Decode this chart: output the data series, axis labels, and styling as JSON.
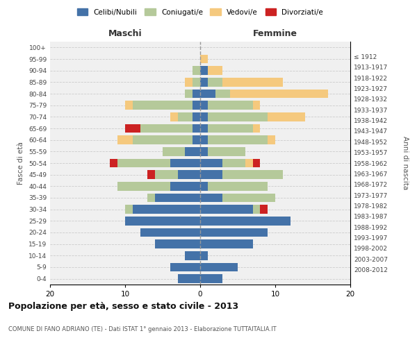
{
  "age_groups": [
    "0-4",
    "5-9",
    "10-14",
    "15-19",
    "20-24",
    "25-29",
    "30-34",
    "35-39",
    "40-44",
    "45-49",
    "50-54",
    "55-59",
    "60-64",
    "65-69",
    "70-74",
    "75-79",
    "80-84",
    "85-89",
    "90-94",
    "95-99",
    "100+"
  ],
  "birth_years": [
    "2008-2012",
    "2003-2007",
    "1998-2002",
    "1993-1997",
    "1988-1992",
    "1983-1987",
    "1978-1982",
    "1973-1977",
    "1968-1972",
    "1963-1967",
    "1958-1962",
    "1953-1957",
    "1948-1952",
    "1943-1947",
    "1938-1942",
    "1933-1937",
    "1928-1932",
    "1923-1927",
    "1918-1922",
    "1913-1917",
    "≤ 1912"
  ],
  "colors": {
    "celibi": "#4472a8",
    "coniugati": "#b5c99a",
    "vedovi": "#f5c97e",
    "divorziati": "#cc2222"
  },
  "maschi": {
    "celibi": [
      3,
      4,
      2,
      6,
      8,
      10,
      9,
      6,
      4,
      3,
      4,
      2,
      1,
      1,
      1,
      1,
      1,
      0,
      0,
      0,
      0
    ],
    "coniugati": [
      0,
      0,
      0,
      0,
      0,
      0,
      1,
      1,
      7,
      3,
      7,
      3,
      8,
      7,
      2,
      8,
      1,
      1,
      1,
      0,
      0
    ],
    "vedovi": [
      0,
      0,
      0,
      0,
      0,
      0,
      0,
      0,
      0,
      0,
      0,
      0,
      2,
      0,
      1,
      1,
      0,
      1,
      0,
      0,
      0
    ],
    "divorziati": [
      0,
      0,
      0,
      0,
      0,
      0,
      0,
      0,
      0,
      1,
      1,
      0,
      0,
      2,
      0,
      0,
      0,
      0,
      0,
      0,
      0
    ]
  },
  "femmine": {
    "celibi": [
      3,
      5,
      1,
      7,
      9,
      12,
      7,
      3,
      1,
      3,
      3,
      1,
      1,
      1,
      1,
      1,
      2,
      1,
      1,
      0,
      0
    ],
    "coniugati": [
      0,
      0,
      0,
      0,
      0,
      0,
      1,
      7,
      8,
      8,
      3,
      5,
      8,
      6,
      8,
      6,
      2,
      2,
      0,
      0,
      0
    ],
    "vedovi": [
      0,
      0,
      0,
      0,
      0,
      0,
      0,
      0,
      0,
      0,
      1,
      0,
      1,
      1,
      5,
      1,
      13,
      8,
      2,
      1,
      0
    ],
    "divorziati": [
      0,
      0,
      0,
      0,
      0,
      0,
      1,
      0,
      0,
      0,
      1,
      0,
      0,
      0,
      0,
      0,
      0,
      0,
      0,
      0,
      0
    ]
  },
  "xlim": 20,
  "title": "Popolazione per età, sesso e stato civile - 2013",
  "subtitle": "COMUNE DI FANO ADRIANO (TE) - Dati ISTAT 1° gennaio 2013 - Elaborazione TUTTAITALIA.IT",
  "ylabel": "Fasce di età",
  "ylabel_right": "Anni di nascita",
  "xlabel_left": "Maschi",
  "xlabel_right": "Femmine",
  "legend_labels": [
    "Celibi/Nubili",
    "Coniugati/e",
    "Vedovi/e",
    "Divorziati/e"
  ],
  "bg_color": "#f0f0f0",
  "bar_height": 0.75
}
